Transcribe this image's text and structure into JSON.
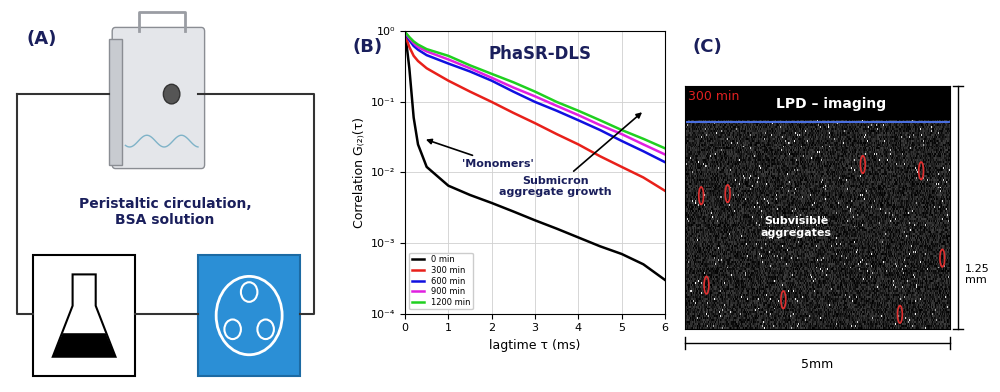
{
  "panel_labels": [
    "(A)",
    "(B)",
    "(C)"
  ],
  "panel_a": {
    "caption": "Peristaltic circulation,\nBSA solution"
  },
  "chart_data": {
    "type": "line",
    "title": "PhaSR-DLS",
    "xlabel": "lagtime τ (ms)",
    "ylabel": "Correlation G₍₂₎(τ)",
    "annotations": [
      "'Monomers'",
      "Submicron\naggregate growth"
    ],
    "x": [
      0,
      0.1,
      0.2,
      0.3,
      0.5,
      1,
      1.5,
      2,
      2.5,
      3,
      3.5,
      4,
      4.5,
      5,
      5.5,
      6
    ],
    "series": [
      {
        "name": "0 min",
        "color": "#000000",
        "values": [
          1,
          0.3,
          0.06,
          0.025,
          0.012,
          0.0065,
          0.0048,
          0.0037,
          0.0028,
          0.0021,
          0.0016,
          0.0012,
          0.0009,
          0.0007,
          0.0005,
          0.0003
        ]
      },
      {
        "name": "300 min",
        "color": "#e8201a",
        "values": [
          0.9,
          0.6,
          0.45,
          0.38,
          0.3,
          0.2,
          0.14,
          0.1,
          0.07,
          0.05,
          0.035,
          0.025,
          0.017,
          0.012,
          0.0085,
          0.0055
        ]
      },
      {
        "name": "600 min",
        "color": "#1010e0",
        "values": [
          0.95,
          0.75,
          0.62,
          0.55,
          0.46,
          0.35,
          0.27,
          0.2,
          0.14,
          0.1,
          0.075,
          0.055,
          0.04,
          0.028,
          0.02,
          0.014
        ]
      },
      {
        "name": "900 min",
        "color": "#e020e0",
        "values": [
          0.97,
          0.8,
          0.68,
          0.6,
          0.52,
          0.4,
          0.3,
          0.22,
          0.16,
          0.12,
          0.088,
          0.065,
          0.047,
          0.035,
          0.025,
          0.018
        ]
      },
      {
        "name": "1200 min",
        "color": "#20d020",
        "values": [
          0.98,
          0.83,
          0.72,
          0.65,
          0.56,
          0.45,
          0.33,
          0.25,
          0.19,
          0.14,
          0.1,
          0.075,
          0.055,
          0.04,
          0.03,
          0.022
        ]
      }
    ],
    "xlim": [
      0,
      6
    ],
    "xticks": [
      0,
      1,
      2,
      3,
      4,
      5,
      6
    ],
    "ylim": [
      0.0001,
      1
    ],
    "yticks": [
      {
        "value": 0.0001,
        "label": "10⁻⁴"
      },
      {
        "value": 0.001,
        "label": "10⁻³"
      },
      {
        "value": 0.01,
        "label": "10⁻²"
      },
      {
        "value": 0.1,
        "label": "10⁻¹"
      },
      {
        "value": 1,
        "label": "10⁰"
      }
    ],
    "log": "y",
    "grid": true,
    "legend": "lower left"
  },
  "panel_c": {
    "time": "300 min",
    "method": "LPD – imaging",
    "annotation": "Subvisible\naggregates",
    "width": "5mm",
    "height": "1.25\nmm"
  }
}
